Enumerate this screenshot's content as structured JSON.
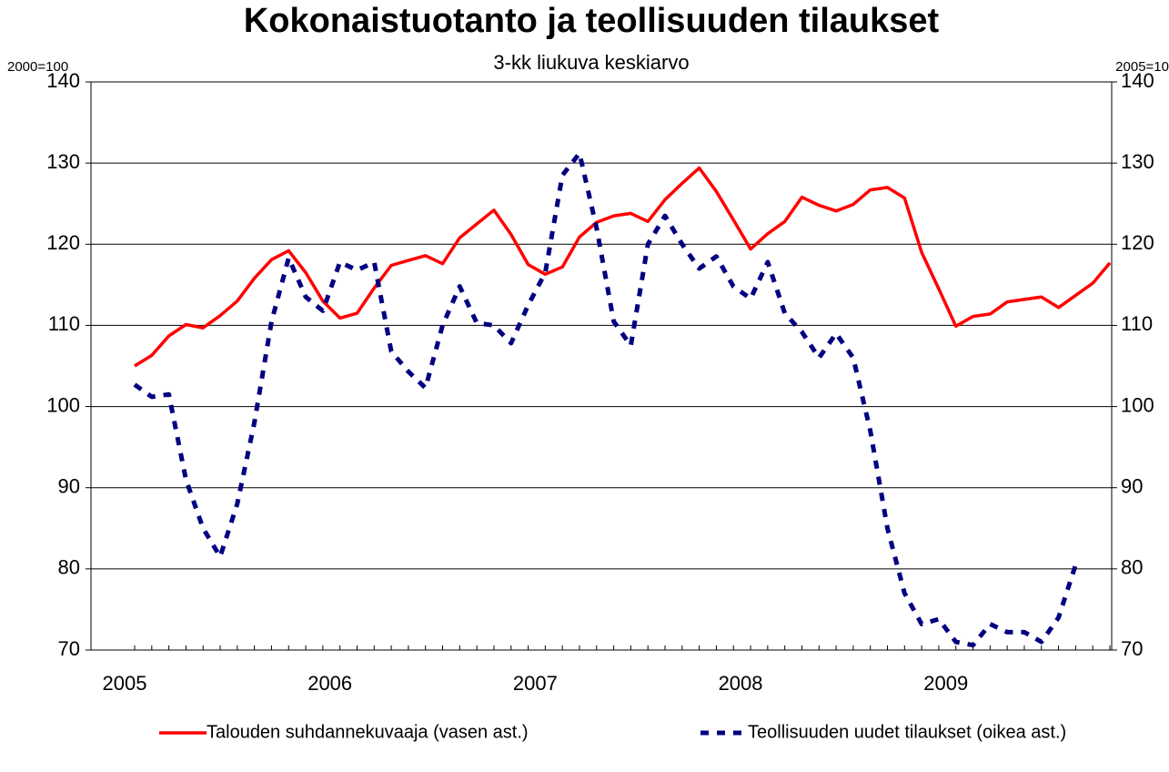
{
  "chart_data": {
    "type": "line",
    "title": "Kokonaistuotanto ja teollisuuden tilaukset",
    "subtitle": "3-kk liukuva keskiarvo",
    "y_label": "2000=100",
    "y2_label": "2005=10",
    "categories": [
      "2005",
      null,
      null,
      null,
      null,
      null,
      null,
      null,
      null,
      null,
      null,
      null,
      "2006",
      null,
      null,
      null,
      null,
      null,
      null,
      null,
      null,
      null,
      null,
      null,
      "2007",
      null,
      null,
      null,
      null,
      null,
      null,
      null,
      null,
      null,
      null,
      null,
      "2008",
      null,
      null,
      null,
      null,
      null,
      null,
      null,
      null,
      null,
      null,
      null,
      "2009",
      null,
      null,
      null,
      null,
      null,
      null,
      null,
      null,
      null
    ],
    "series": [
      {
        "name": "Talouden suhdannekuvaaja (vasen ast.)",
        "color": "#ff0000",
        "axis": "y",
        "dashed": false,
        "values": [
          105,
          106.3,
          108.7,
          110.1,
          109.7,
          111.2,
          113,
          115.8,
          118.1,
          119.2,
          116.5,
          113,
          110.9,
          111.5,
          114.6,
          117.4,
          118,
          118.6,
          117.6,
          120.8,
          122.5,
          124.2,
          121.2,
          117.5,
          116.3,
          117.2,
          120.9,
          122.7,
          123.5,
          123.8,
          122.8,
          125.5,
          127.5,
          129.4,
          126.5,
          123,
          119.4,
          121.3,
          122.8,
          125.8,
          124.8,
          124.1,
          124.9,
          126.7,
          127,
          125.7,
          119,
          114.5,
          109.9,
          111.1,
          111.4,
          112.9,
          113.2,
          113.5,
          112.2,
          113.7,
          115.2,
          117.7
        ]
      },
      {
        "name": "Teollisuuden uudet tilaukset (oikea ast.)",
        "color": "#000080",
        "axis": "y2",
        "dashed": true,
        "values": [
          102.7,
          101.2,
          101.5,
          91,
          85,
          81.5,
          88,
          98,
          110.5,
          118.3,
          113.5,
          111.8,
          117.8,
          116.8,
          117.8,
          106.8,
          104.3,
          102.3,
          110,
          114.8,
          110.3,
          110,
          107.8,
          112.5,
          116.5,
          128.5,
          131.2,
          122,
          110.5,
          107.5,
          120,
          123.5,
          120,
          117,
          118.5,
          114.8,
          113.3,
          117.8,
          111.5,
          109.2,
          106,
          109,
          106,
          97,
          85,
          77,
          73.2,
          73.8,
          71,
          70.6,
          73.2,
          72.2,
          72.2,
          71,
          74,
          80.5,
          null,
          null
        ]
      }
    ],
    "ylim": [
      70,
      140
    ],
    "yticks": [
      70,
      80,
      90,
      100,
      110,
      120,
      130,
      140
    ],
    "y2lim": [
      70,
      140
    ],
    "y2ticks": [
      70,
      80,
      90,
      100,
      110,
      120,
      130,
      140
    ],
    "grid": true,
    "legend": "bottom"
  }
}
